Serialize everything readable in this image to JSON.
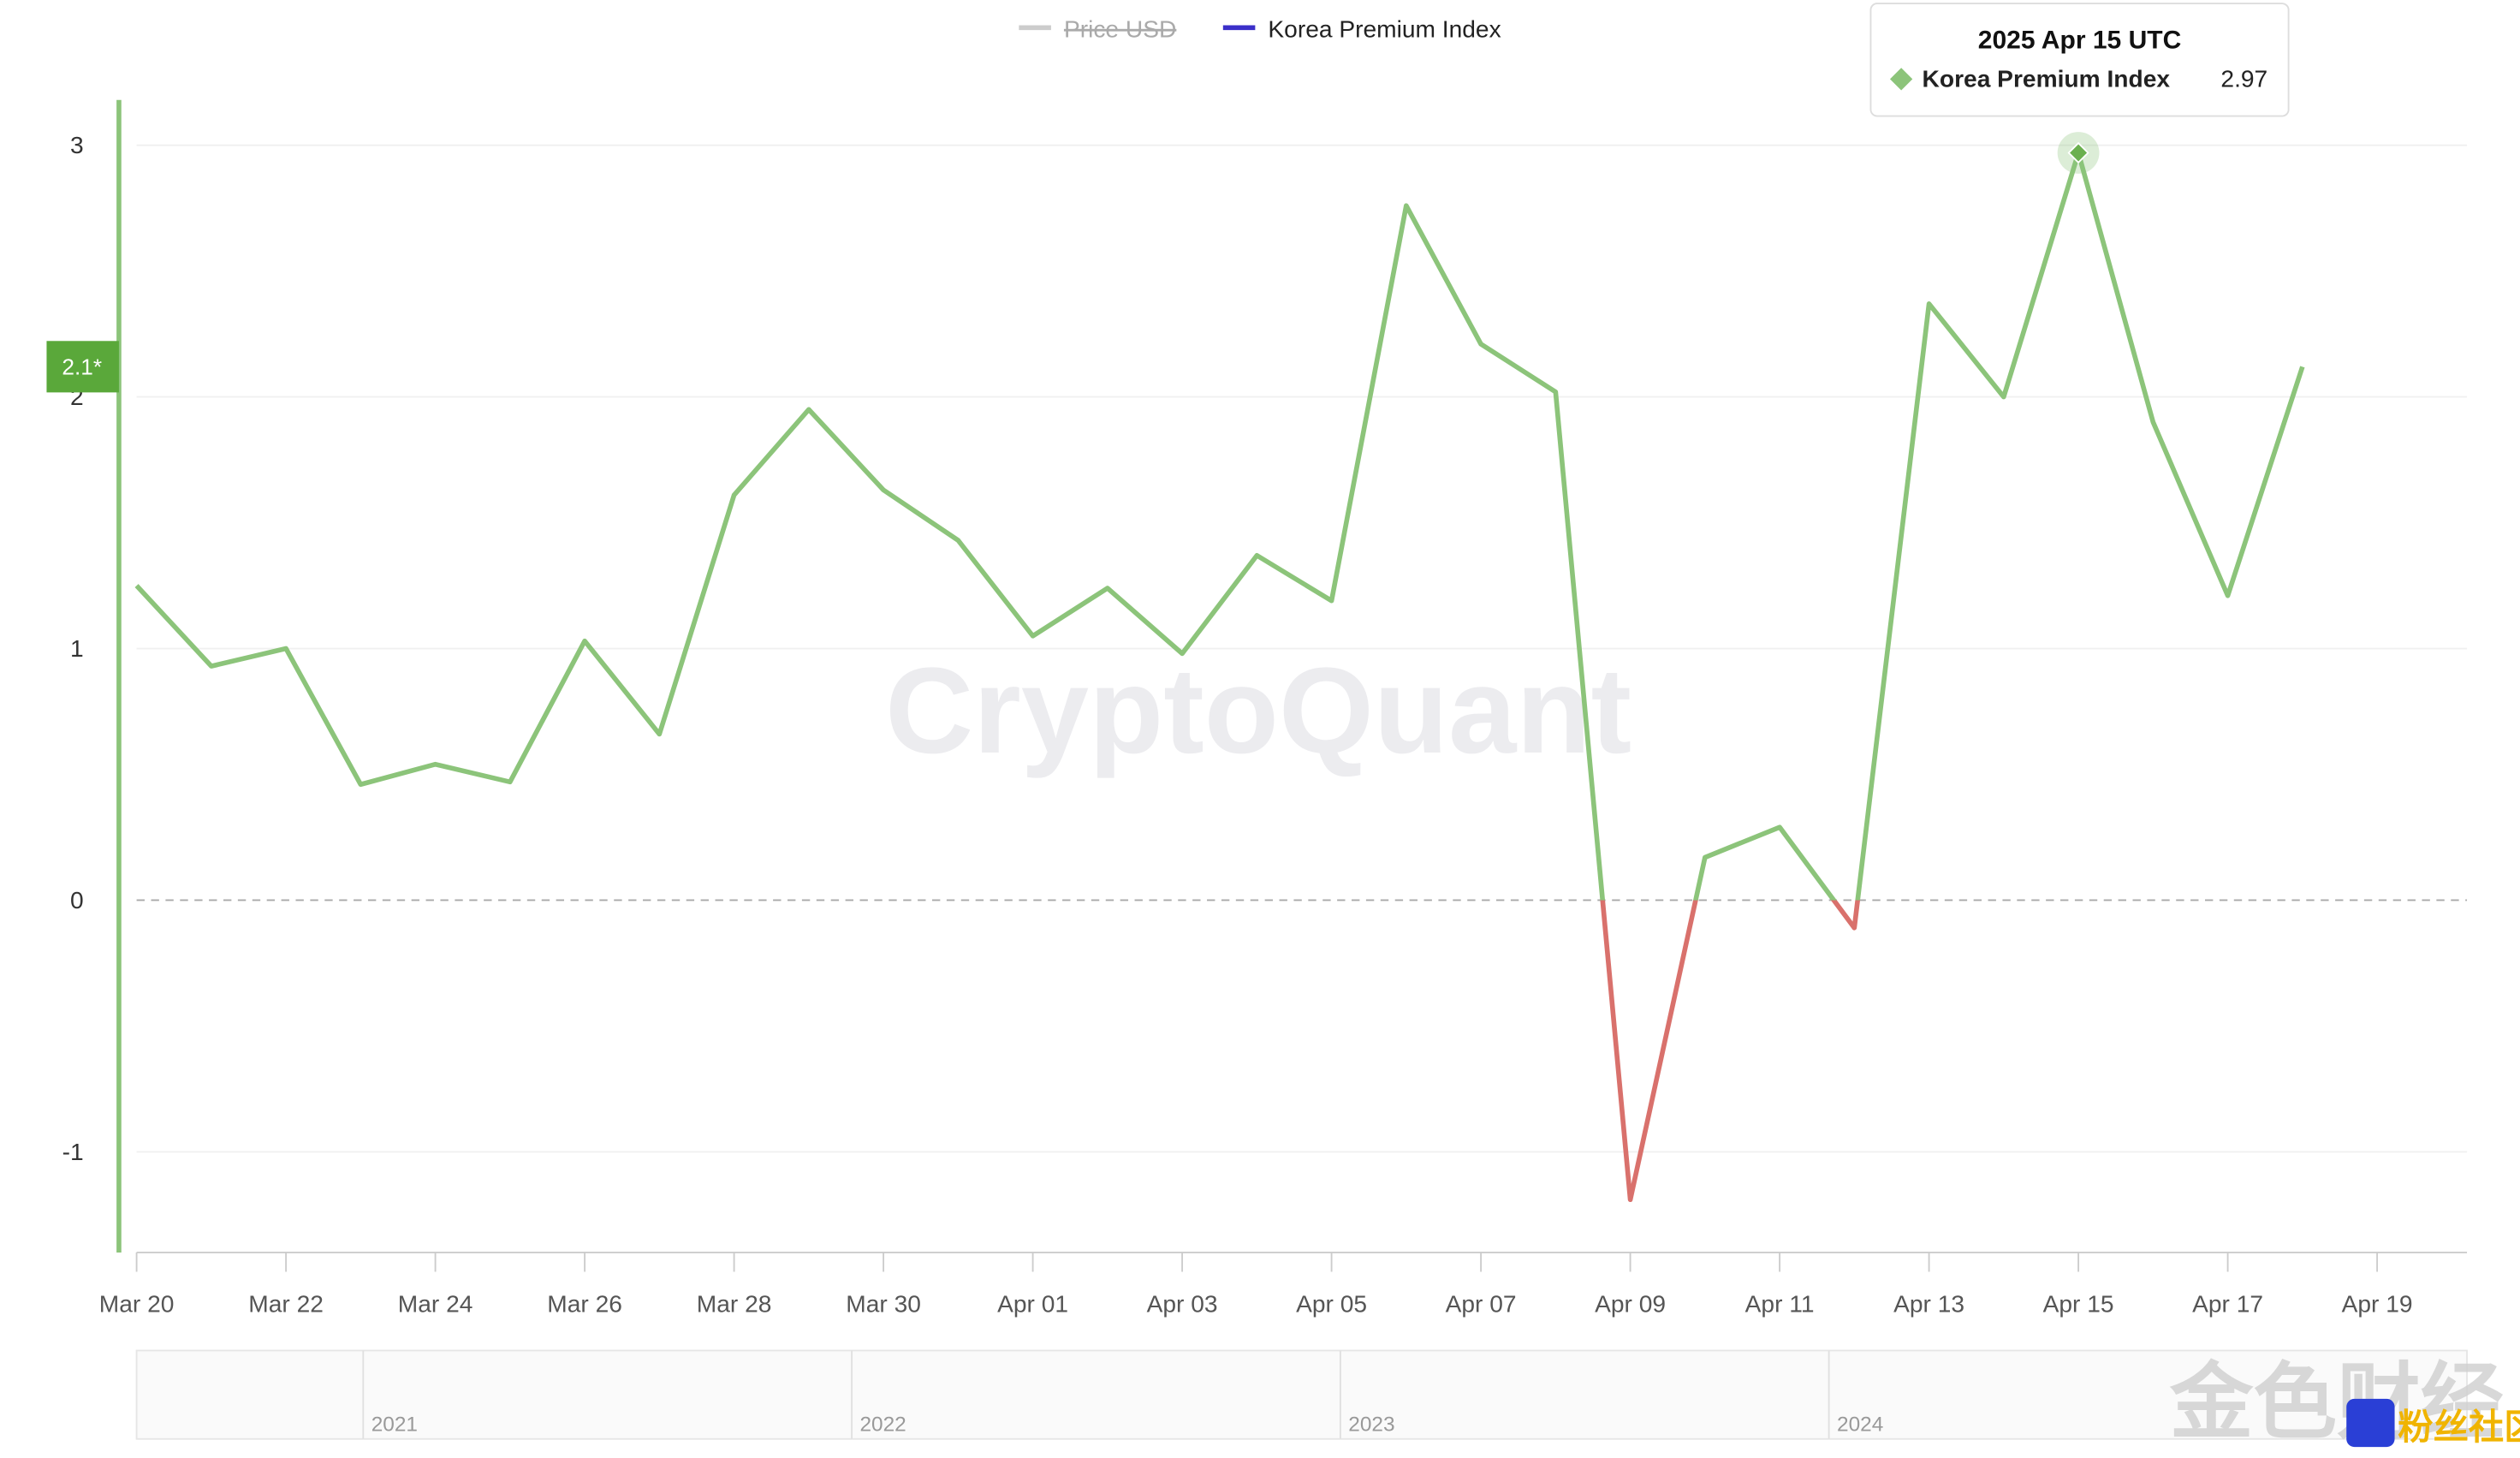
{
  "chart_data": {
    "type": "line",
    "legend": [
      {
        "name": "Price USD",
        "color": "#cccccc",
        "hidden": true
      },
      {
        "name": "Korea Premium Index",
        "color": "#3b2fc9"
      }
    ],
    "categories": [
      "Mar 20",
      null,
      "Mar 22",
      null,
      "Mar 24",
      null,
      "Mar 26",
      null,
      "Mar 28",
      null,
      "Mar 30",
      null,
      "Apr 01",
      null,
      "Apr 03",
      null,
      "Apr 05",
      null,
      "Apr 07",
      null,
      "Apr 09",
      null,
      "Apr 11",
      null,
      "Apr 13",
      null,
      "Apr 15",
      null,
      "Apr 17",
      null,
      "Apr 19"
    ],
    "series": [
      {
        "name": "Korea Premium Index",
        "color": "#8cc47a",
        "negative_color": "#d9716c",
        "values": [
          1.25,
          0.93,
          1.0,
          0.46,
          0.54,
          0.47,
          1.03,
          0.66,
          1.61,
          1.95,
          1.63,
          1.43,
          1.05,
          1.24,
          0.98,
          1.37,
          1.19,
          2.76,
          2.21,
          2.02,
          -1.19,
          0.17,
          0.29,
          -0.11,
          2.37,
          2.0,
          2.97,
          1.9,
          1.21,
          2.12,
          null
        ]
      }
    ],
    "ylim": [
      -1.4,
      3.18
    ],
    "yticks": [
      -1,
      0,
      1,
      2,
      3
    ],
    "grid": true,
    "zero_line": true,
    "last_value_label": "2.1*",
    "tooltip": {
      "title": "2025 Apr 15 UTC",
      "index": 26
    },
    "watermark": "CryptoQuant",
    "navigator_labels": [
      "2021",
      "2022",
      "2023",
      "2024"
    ],
    "corner_watermarks": [
      "金色财经",
      "粉丝社区"
    ]
  }
}
